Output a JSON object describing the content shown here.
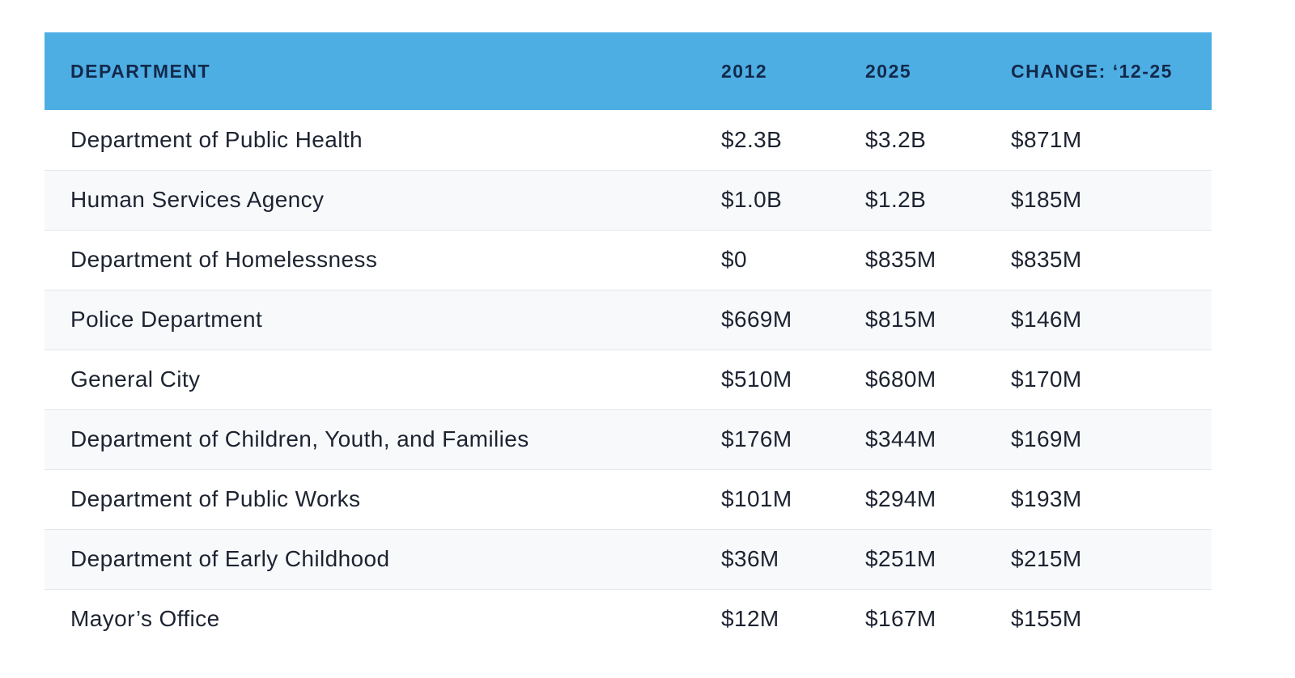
{
  "table": {
    "headers": [
      "DEPARTMENT",
      "2012",
      "2025",
      "CHANGE: ‘12-25"
    ],
    "rows": [
      [
        "Department of Public Health",
        "$2.3B",
        "$3.2B",
        "$871M"
      ],
      [
        "Human Services Agency",
        "$1.0B",
        "$1.2B",
        "$185M"
      ],
      [
        "Department of Homelessness",
        "$0",
        "$835M",
        "$835M"
      ],
      [
        "Police Department",
        "$669M",
        "$815M",
        "$146M"
      ],
      [
        "General City",
        "$510M",
        "$680M",
        "$170M"
      ],
      [
        "Department of Children, Youth, and Families",
        "$176M",
        "$344M",
        "$169M"
      ],
      [
        "Department of Public Works",
        "$101M",
        "$294M",
        "$193M"
      ],
      [
        "Department of Early Childhood",
        "$36M",
        "$251M",
        "$215M"
      ],
      [
        "Mayor’s Office",
        "$12M",
        "$167M",
        "$155M"
      ]
    ]
  },
  "colors": {
    "header_bg": "#4daee4",
    "header_text": "#13294b",
    "body_text": "#1d2330",
    "stripe": "#f8f9fb",
    "divider": "#e3e6ea"
  }
}
